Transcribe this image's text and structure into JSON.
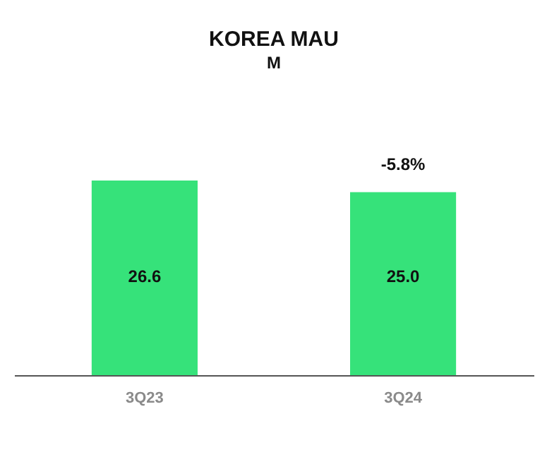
{
  "chart_data": {
    "type": "bar",
    "title": "KOREA MAU",
    "subtitle": "M",
    "categories": [
      "3Q23",
      "3Q24"
    ],
    "values": [
      26.6,
      25.0
    ],
    "value_labels": [
      "26.6",
      "25.0"
    ],
    "color": "#36e27a",
    "annotations": [
      {
        "text": "-5.8%",
        "x": "3Q24",
        "y": 25.0
      }
    ]
  }
}
